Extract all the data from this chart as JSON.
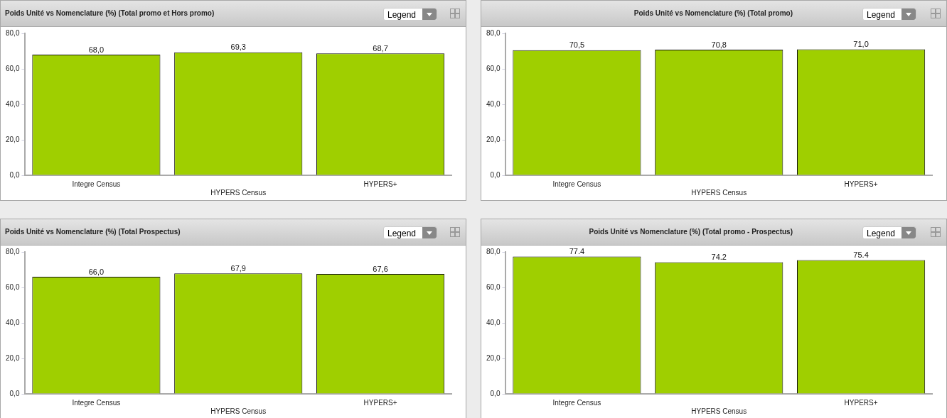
{
  "chart_data": [
    {
      "type": "bar",
      "title": "Poids Unité vs Nomenclature (%) (Total promo et Hors promo)",
      "categories": [
        "Integre Census",
        "HYPERS Census",
        "HYPERS+"
      ],
      "values": [
        68.0,
        69.3,
        68.7
      ],
      "value_labels": [
        "68,0",
        "69,3",
        "68,7"
      ],
      "color": "#9fcf00",
      "ylim": [
        0,
        80
      ],
      "yticks": [
        {
          "value": 0,
          "label": "0,0"
        },
        {
          "value": 20,
          "label": "20,0"
        },
        {
          "value": 40,
          "label": "40,0"
        },
        {
          "value": 60,
          "label": "60,0"
        },
        {
          "value": 80,
          "label": "80,0"
        }
      ],
      "grid": false,
      "legend": false,
      "annotations": [
        "Legend"
      ]
    },
    {
      "type": "bar",
      "title": "Poids Unité vs Nomenclature (%) (Total promo)",
      "categories": [
        "Integre Census",
        "HYPERS Census",
        "HYPERS+"
      ],
      "values": [
        70.5,
        70.8,
        71.0
      ],
      "value_labels": [
        "70,5",
        "70,8",
        "71,0"
      ],
      "color": "#9fcf00",
      "ylim": [
        0,
        80
      ],
      "yticks": [
        {
          "value": 0,
          "label": "0,0"
        },
        {
          "value": 20,
          "label": "20,0"
        },
        {
          "value": 40,
          "label": "40,0"
        },
        {
          "value": 60,
          "label": "60,0"
        },
        {
          "value": 80,
          "label": "80,0"
        }
      ],
      "grid": false,
      "legend": false,
      "annotations": [
        "Legend"
      ]
    },
    {
      "type": "bar",
      "title": "Poids Unité vs Nomenclature (%) (Total Prospectus)",
      "categories": [
        "Integre Census",
        "HYPERS Census",
        "HYPERS+"
      ],
      "values": [
        66.0,
        67.9,
        67.6
      ],
      "value_labels": [
        "66,0",
        "67,9",
        "67,6"
      ],
      "color": "#9fcf00",
      "ylim": [
        0,
        80
      ],
      "yticks": [
        {
          "value": 0,
          "label": "0,0"
        },
        {
          "value": 20,
          "label": "20,0"
        },
        {
          "value": 40,
          "label": "40,0"
        },
        {
          "value": 60,
          "label": "60,0"
        },
        {
          "value": 80,
          "label": "80,0"
        }
      ],
      "grid": false,
      "legend": false,
      "annotations": [
        "Legend"
      ]
    },
    {
      "type": "bar",
      "title": "Poids Unité vs Nomenclature (%) (Total promo - Prospectus)",
      "categories": [
        "Integre Census",
        "HYPERS Census",
        "HYPERS+"
      ],
      "values": [
        77.4,
        74.2,
        75.4
      ],
      "value_labels": [
        "77.4",
        "74.2",
        "75.4"
      ],
      "color": "#9fcf00",
      "ylim": [
        0,
        80
      ],
      "yticks": [
        {
          "value": 0,
          "label": "0,0"
        },
        {
          "value": 20,
          "label": "20,0"
        },
        {
          "value": 40,
          "label": "40,0"
        },
        {
          "value": 60,
          "label": "60,0"
        },
        {
          "value": 80,
          "label": "80,0"
        }
      ],
      "grid": false,
      "legend": false,
      "annotations": [
        "Legend"
      ]
    }
  ]
}
